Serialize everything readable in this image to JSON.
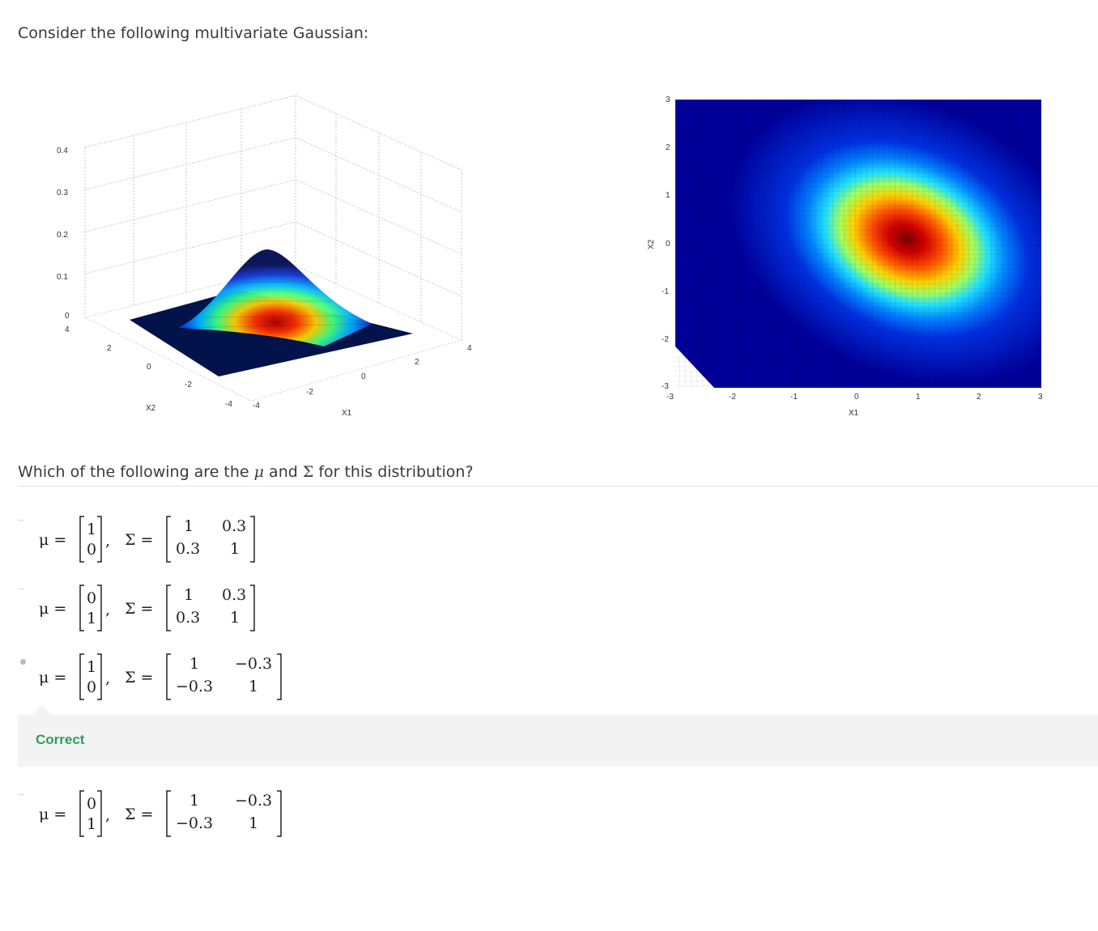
{
  "intro_text": "Consider the following multivariate Gaussian:",
  "surface_plot": {
    "z_ticks": [
      "0.4",
      "0.3",
      "0.2",
      "0.1",
      "0"
    ],
    "x2_ticks": [
      "4",
      "2",
      "0",
      "-2",
      "-4"
    ],
    "x1_ticks": [
      "-4",
      "-2",
      "0",
      "2",
      "4"
    ],
    "x2_label": "X2",
    "x1_label": "X1"
  },
  "heatmap_plot": {
    "y_ticks": [
      "3",
      "2",
      "1",
      "0",
      "-1",
      "-2",
      "-3"
    ],
    "x_ticks": [
      "-3",
      "-2",
      "-1",
      "0",
      "1",
      "2",
      "3"
    ],
    "y_label": "X2",
    "x_label": "X1"
  },
  "question": {
    "prefix": "Which of the following are the ",
    "mu": "μ",
    "middle": " and ",
    "sigma": "Σ",
    "suffix": " for this distribution?"
  },
  "options": [
    {
      "mu": [
        "1",
        "0"
      ],
      "sigma": [
        "1",
        "0.3",
        "0.3",
        "1"
      ],
      "selected": false
    },
    {
      "mu": [
        "0",
        "1"
      ],
      "sigma": [
        "1",
        "0.3",
        "0.3",
        "1"
      ],
      "selected": false
    },
    {
      "mu": [
        "1",
        "0"
      ],
      "sigma": [
        "1",
        "−0.3",
        "−0.3",
        "1"
      ],
      "selected": true
    },
    {
      "mu": [
        "0",
        "1"
      ],
      "sigma": [
        "1",
        "−0.3",
        "−0.3",
        "1"
      ],
      "selected": false
    }
  ],
  "symbols": {
    "mu_eq": "μ =",
    "sigma_eq": "Σ =",
    "comma": ","
  },
  "feedback": {
    "label": "Correct",
    "color": "#2f9d5c"
  }
}
